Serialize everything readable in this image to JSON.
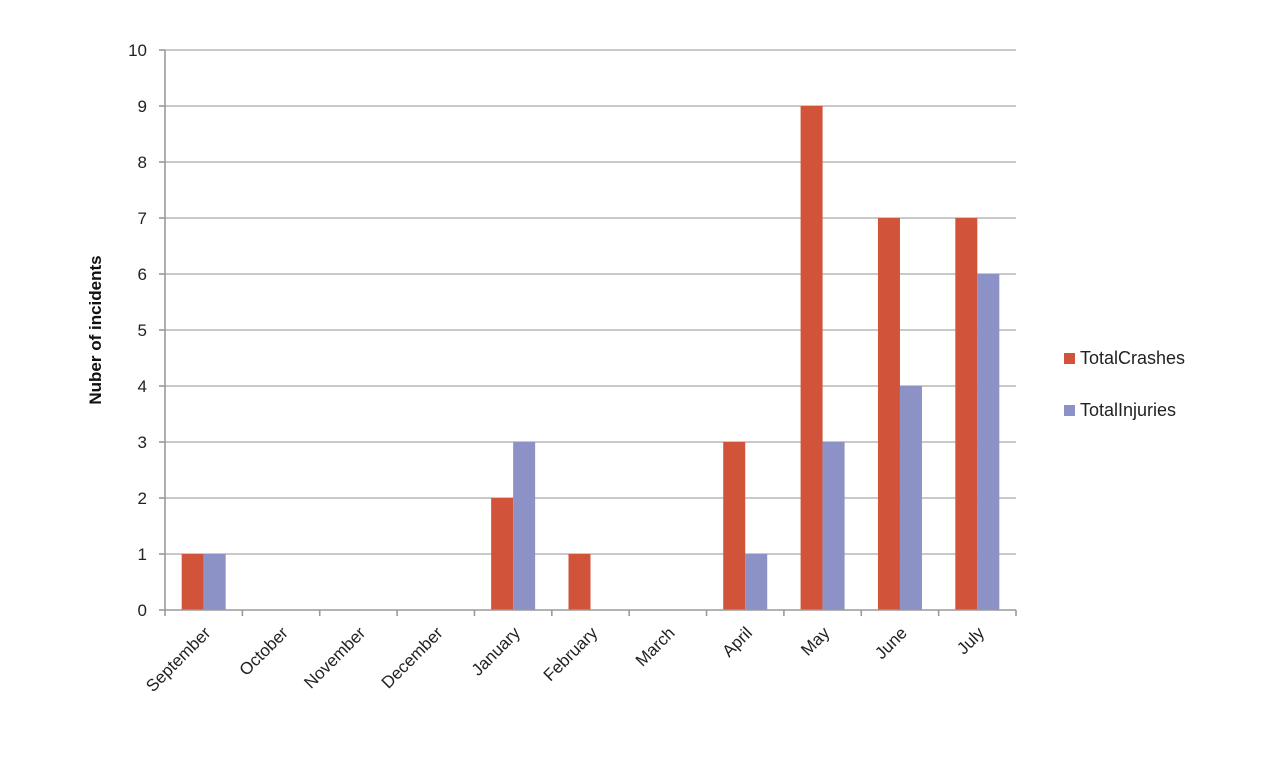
{
  "chart_data": {
    "type": "bar",
    "title": "",
    "xlabel": "",
    "ylabel": "Nuber of incidents",
    "categories": [
      "September",
      "October",
      "November",
      "December",
      "January",
      "February",
      "March",
      "April",
      "May",
      "June",
      "July"
    ],
    "series": [
      {
        "name": "TotalCrashes",
        "color": "#d0533a",
        "values": [
          1,
          0,
          0,
          0,
          2,
          1,
          0,
          3,
          9,
          7,
          7
        ]
      },
      {
        "name": "TotalInjuries",
        "color": "#8c92c5",
        "values": [
          1,
          0,
          0,
          0,
          3,
          0,
          0,
          1,
          3,
          4,
          6
        ]
      }
    ],
    "ylim": [
      0,
      10
    ],
    "yticks": [
      0,
      1,
      2,
      3,
      4,
      5,
      6,
      7,
      8,
      9,
      10
    ],
    "grid": true,
    "legend_position": "right"
  }
}
